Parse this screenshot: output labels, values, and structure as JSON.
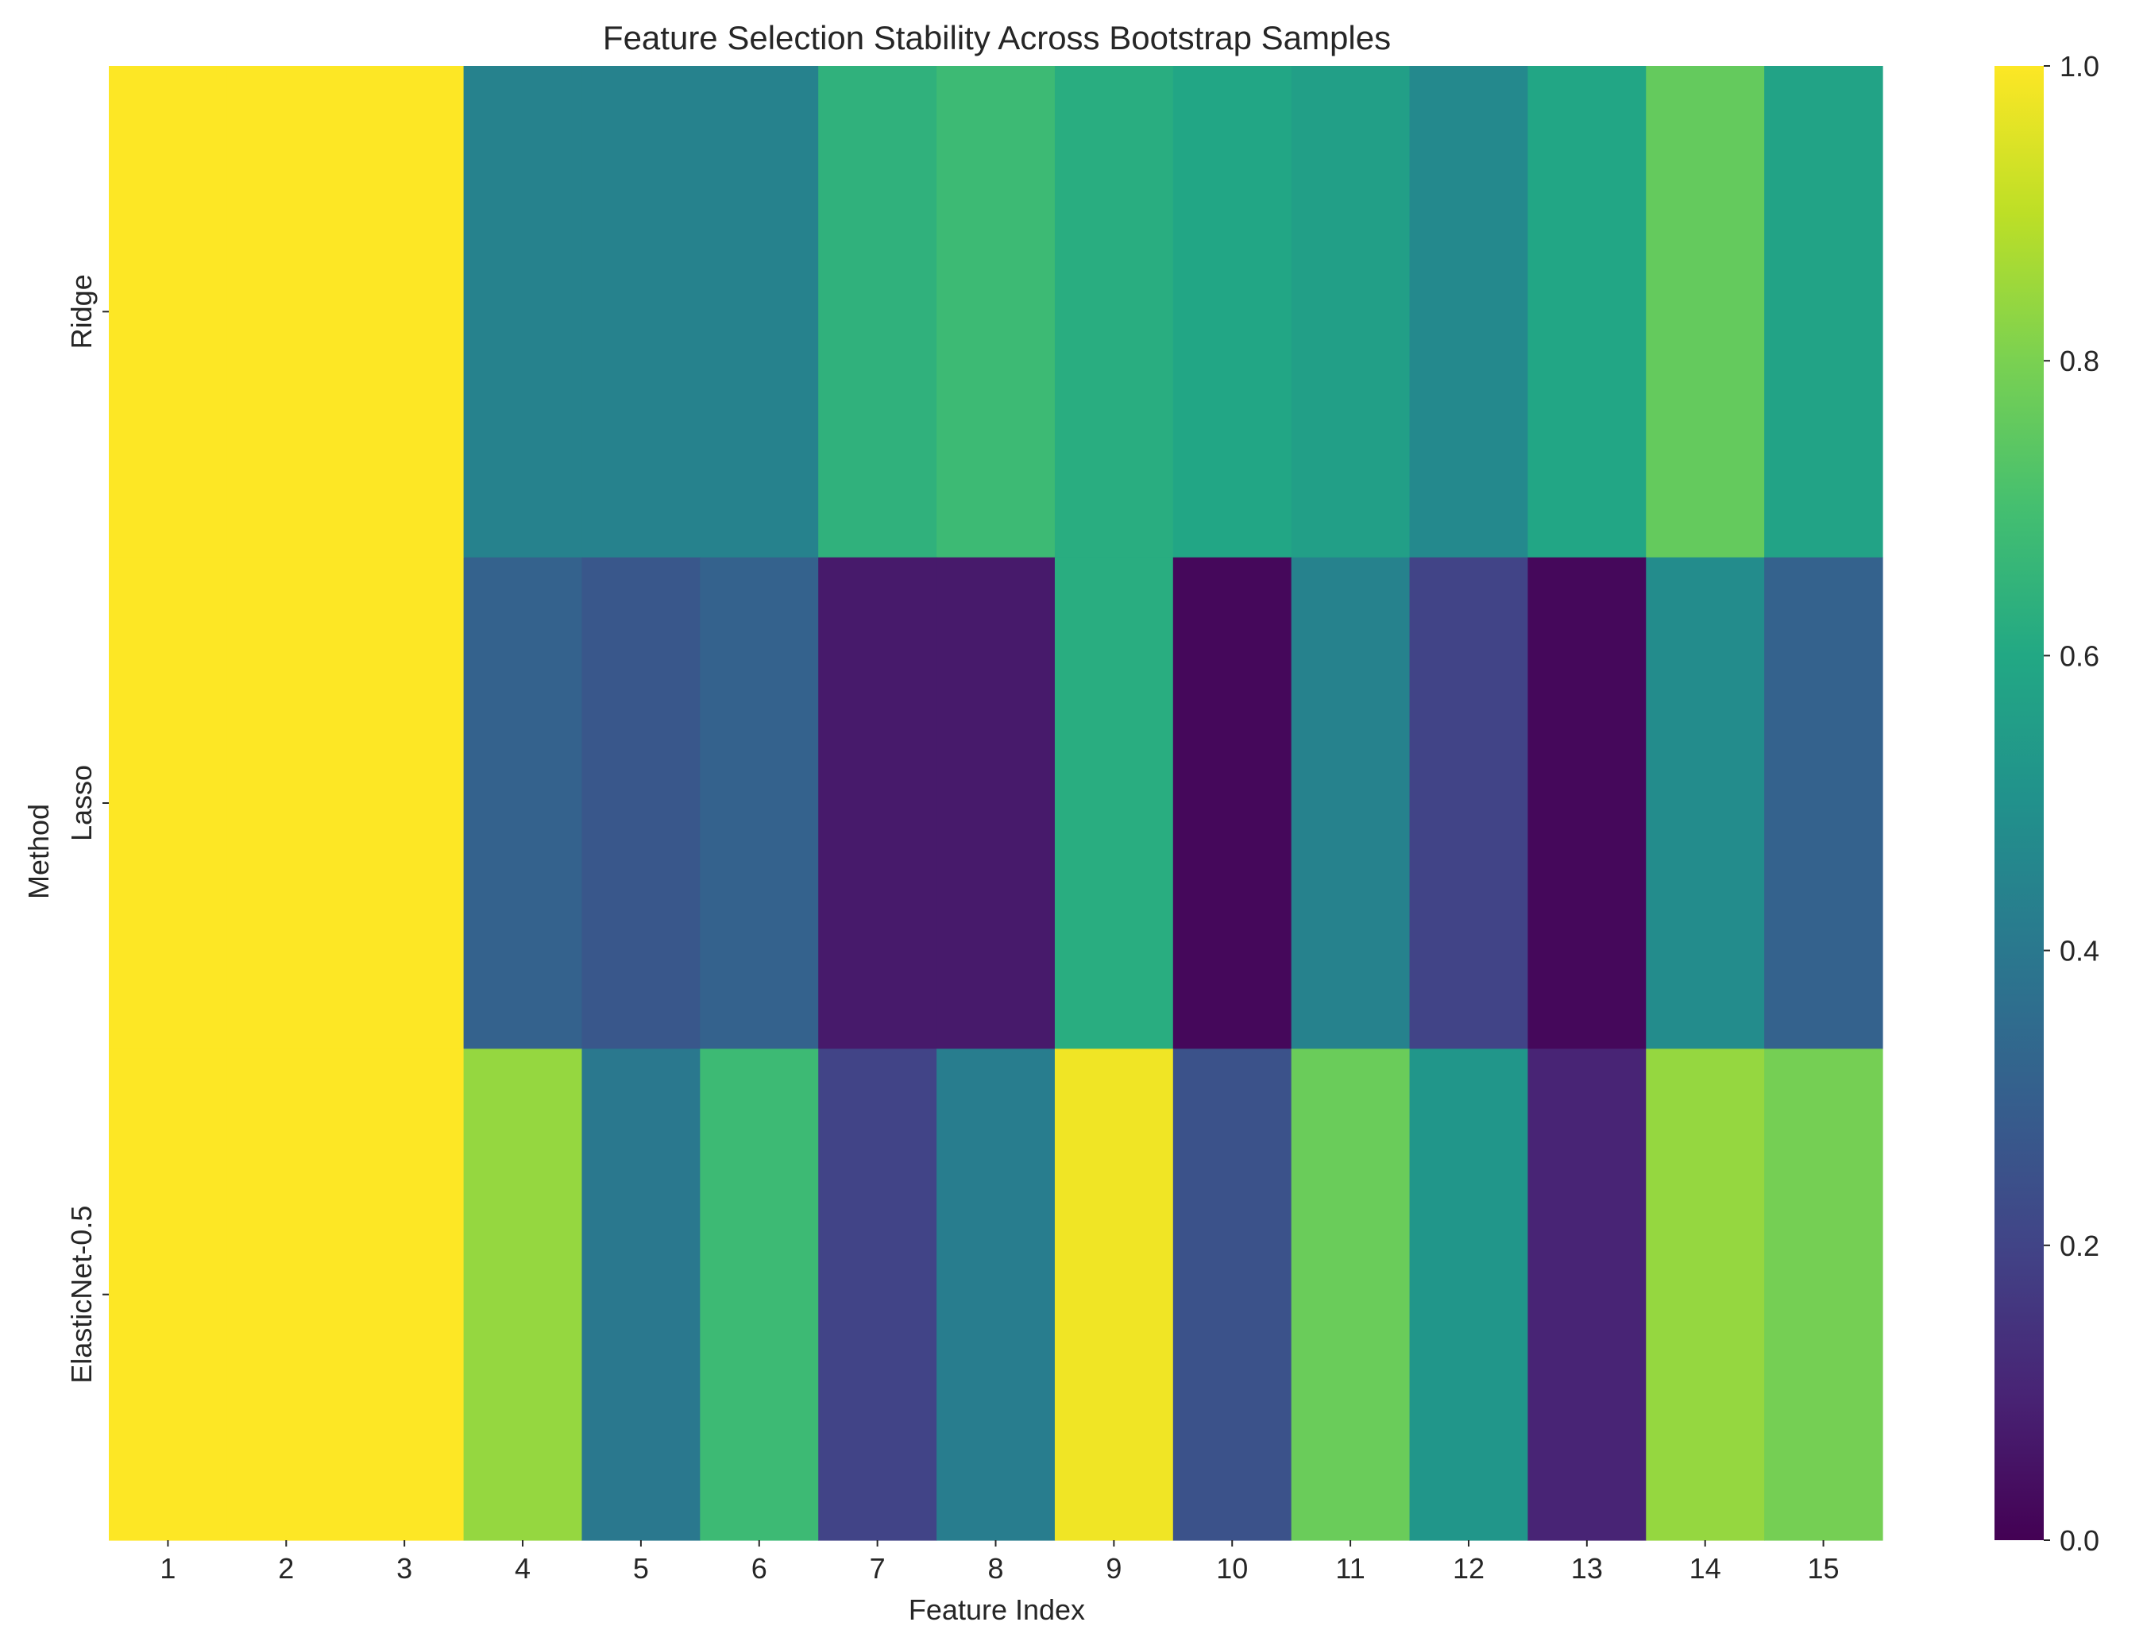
{
  "chart_data": {
    "type": "heatmap",
    "title": "Feature Selection Stability Across Bootstrap Samples",
    "xlabel": "Feature Index",
    "ylabel": "Method",
    "x_categories": [
      "1",
      "2",
      "3",
      "4",
      "5",
      "6",
      "7",
      "8",
      "9",
      "10",
      "11",
      "12",
      "13",
      "14",
      "15"
    ],
    "y_categories": [
      "Ridge",
      "Lasso",
      "ElasticNet-0.5"
    ],
    "values": [
      [
        1.0,
        1.0,
        1.0,
        0.44,
        0.44,
        0.44,
        0.64,
        0.68,
        0.62,
        0.59,
        0.56,
        0.47,
        0.59,
        0.76,
        0.58
      ],
      [
        1.0,
        1.0,
        1.0,
        0.31,
        0.27,
        0.31,
        0.07,
        0.07,
        0.62,
        0.02,
        0.44,
        0.2,
        0.02,
        0.48,
        0.31
      ],
      [
        1.0,
        1.0,
        1.0,
        0.84,
        0.4,
        0.68,
        0.2,
        0.42,
        0.98,
        0.25,
        0.77,
        0.52,
        0.1,
        0.84,
        0.79
      ]
    ],
    "colormap": "viridis",
    "vmin": 0.0,
    "vmax": 1.0,
    "colorbar_ticks": [
      "0.0",
      "0.2",
      "0.4",
      "0.6",
      "0.8",
      "1.0"
    ],
    "grid": false
  }
}
